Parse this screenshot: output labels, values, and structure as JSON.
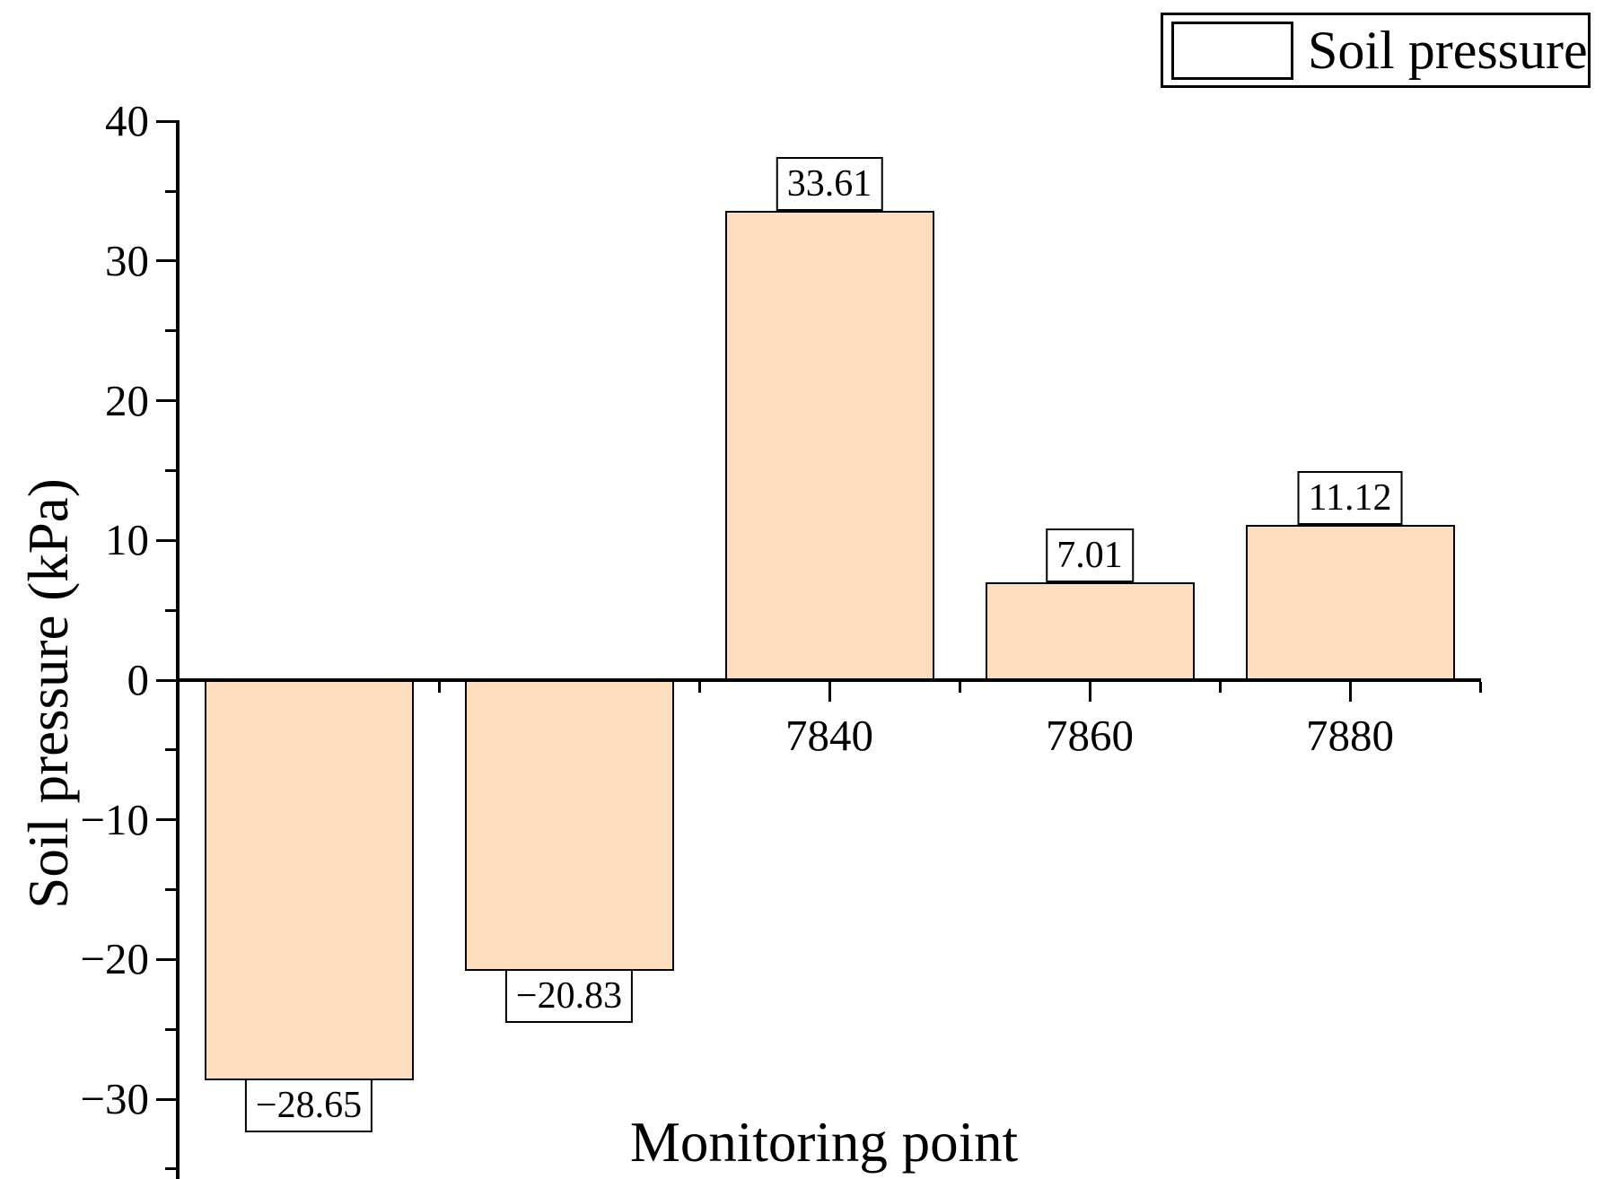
{
  "chart_data": {
    "type": "bar",
    "title": "",
    "xlabel": "Monitoring point",
    "ylabel": "Soil pressure (kPa)",
    "legend": [
      "Soil pressure"
    ],
    "legend_position": "top-right",
    "grid": false,
    "bar_color": "#FCDDBD",
    "bar_border_color": "#000000",
    "ylim": [
      -35,
      40
    ],
    "y_major_tick_step": 10,
    "y_minor_tick_step": 5,
    "y_tick_values": [
      40,
      30,
      20,
      10,
      0,
      -10,
      -20,
      -30
    ],
    "y_tick_labels": [
      "40",
      "30",
      "20",
      "10",
      "0",
      "−10",
      "−20",
      "−30"
    ],
    "x_tick_labels": [
      "7840",
      "7860",
      "7880"
    ],
    "bars": [
      {
        "x_label": "",
        "value": -28.65,
        "value_label": "−28.65"
      },
      {
        "x_label": "",
        "value": -20.83,
        "value_label": "−20.83"
      },
      {
        "x_label": "7840",
        "value": 33.61,
        "value_label": "33.61"
      },
      {
        "x_label": "7860",
        "value": 7.01,
        "value_label": "7.01"
      },
      {
        "x_label": "7880",
        "value": 11.12,
        "value_label": "11.12"
      }
    ]
  }
}
